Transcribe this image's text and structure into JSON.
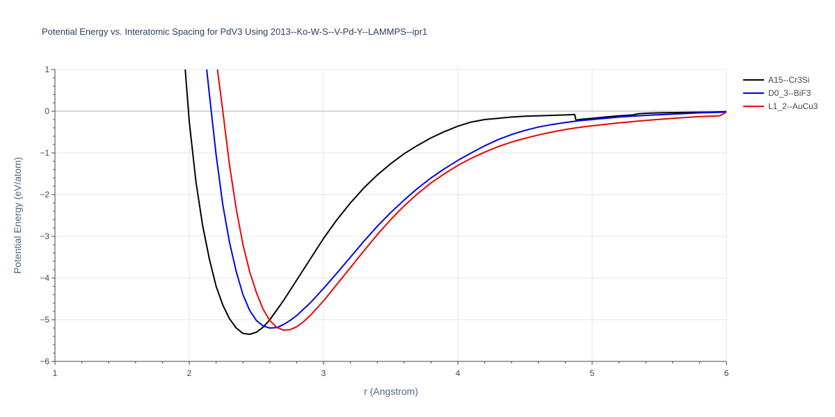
{
  "chart_data": {
    "type": "line",
    "title": "Potential Energy vs. Interatomic Spacing for PdV3 Using 2013--Ko-W-S--V-Pd-Y--LAMMPS--ipr1",
    "xlabel": "r (Angstrom)",
    "ylabel": "Potential Energy (eV/atom)",
    "xlim": [
      1,
      6
    ],
    "ylim": [
      -6,
      1
    ],
    "xticks": [
      1,
      2,
      3,
      4,
      5,
      6
    ],
    "xtick_labels": [
      "1",
      "2",
      "3",
      "4",
      "5",
      "6"
    ],
    "yticks": [
      1,
      0,
      -1,
      -2,
      -3,
      -4,
      -5,
      -6
    ],
    "ytick_labels": [
      "1",
      "0",
      "−1",
      "−2",
      "−3",
      "−4",
      "−5",
      "−6"
    ],
    "grid": true,
    "legend_position": "top-right",
    "series": [
      {
        "name": "A15--Cr3Si",
        "color": "#000000",
        "x": [
          1.97,
          2.0,
          2.05,
          2.1,
          2.15,
          2.2,
          2.25,
          2.3,
          2.35,
          2.4,
          2.45,
          2.5,
          2.55,
          2.6,
          2.7,
          2.8,
          2.9,
          3.0,
          3.1,
          3.2,
          3.3,
          3.4,
          3.5,
          3.6,
          3.7,
          3.8,
          3.9,
          4.0,
          4.1,
          4.2,
          4.3,
          4.4,
          4.5,
          4.6,
          4.7,
          4.8,
          4.87,
          4.88,
          4.9,
          5.0,
          5.1,
          5.2,
          5.3,
          5.35,
          5.4,
          5.5,
          5.6,
          5.7,
          5.8,
          5.9,
          6.0
        ],
        "y": [
          1.0,
          -0.25,
          -1.7,
          -2.75,
          -3.55,
          -4.2,
          -4.65,
          -4.98,
          -5.2,
          -5.33,
          -5.35,
          -5.3,
          -5.18,
          -5.0,
          -4.55,
          -4.05,
          -3.55,
          -3.05,
          -2.6,
          -2.2,
          -1.84,
          -1.53,
          -1.26,
          -1.02,
          -0.82,
          -0.64,
          -0.49,
          -0.36,
          -0.26,
          -0.2,
          -0.17,
          -0.14,
          -0.12,
          -0.11,
          -0.1,
          -0.09,
          -0.08,
          -0.22,
          -0.2,
          -0.17,
          -0.14,
          -0.11,
          -0.09,
          -0.06,
          -0.05,
          -0.04,
          -0.035,
          -0.03,
          -0.025,
          -0.02,
          -0.01
        ]
      },
      {
        "name": "D0_3--BiF3",
        "color": "#0000ee",
        "x": [
          2.13,
          2.15,
          2.2,
          2.25,
          2.3,
          2.35,
          2.4,
          2.45,
          2.5,
          2.55,
          2.6,
          2.65,
          2.7,
          2.75,
          2.8,
          2.9,
          3.0,
          3.1,
          3.2,
          3.3,
          3.4,
          3.5,
          3.6,
          3.7,
          3.8,
          3.9,
          4.0,
          4.1,
          4.2,
          4.3,
          4.4,
          4.5,
          4.6,
          4.7,
          4.8,
          4.9,
          5.0,
          5.2,
          5.4,
          5.6,
          5.8,
          6.0
        ],
        "y": [
          1.0,
          0.4,
          -1.05,
          -2.25,
          -3.15,
          -3.85,
          -4.4,
          -4.78,
          -5.02,
          -5.15,
          -5.2,
          -5.19,
          -5.12,
          -5.02,
          -4.9,
          -4.6,
          -4.25,
          -3.88,
          -3.5,
          -3.12,
          -2.76,
          -2.43,
          -2.13,
          -1.85,
          -1.6,
          -1.38,
          -1.18,
          -1.0,
          -0.83,
          -0.68,
          -0.56,
          -0.46,
          -0.38,
          -0.32,
          -0.27,
          -0.23,
          -0.2,
          -0.14,
          -0.1,
          -0.07,
          -0.04,
          -0.02
        ]
      },
      {
        "name": "L1_2--AuCu3",
        "color": "#ee0000",
        "x": [
          2.21,
          2.25,
          2.3,
          2.35,
          2.4,
          2.45,
          2.5,
          2.55,
          2.6,
          2.65,
          2.7,
          2.75,
          2.8,
          2.85,
          2.9,
          3.0,
          3.1,
          3.2,
          3.3,
          3.4,
          3.5,
          3.6,
          3.7,
          3.8,
          3.9,
          4.0,
          4.1,
          4.2,
          4.3,
          4.4,
          4.5,
          4.6,
          4.7,
          4.8,
          4.9,
          5.0,
          5.2,
          5.4,
          5.6,
          5.8,
          5.95,
          6.0
        ],
        "y": [
          1.0,
          0.0,
          -1.3,
          -2.35,
          -3.2,
          -3.85,
          -4.35,
          -4.75,
          -5.02,
          -5.18,
          -5.25,
          -5.24,
          -5.17,
          -5.05,
          -4.9,
          -4.55,
          -4.15,
          -3.75,
          -3.35,
          -2.96,
          -2.6,
          -2.27,
          -1.98,
          -1.72,
          -1.5,
          -1.3,
          -1.13,
          -0.98,
          -0.85,
          -0.74,
          -0.65,
          -0.57,
          -0.5,
          -0.44,
          -0.39,
          -0.35,
          -0.28,
          -0.22,
          -0.17,
          -0.13,
          -0.11,
          -0.02
        ]
      }
    ]
  }
}
